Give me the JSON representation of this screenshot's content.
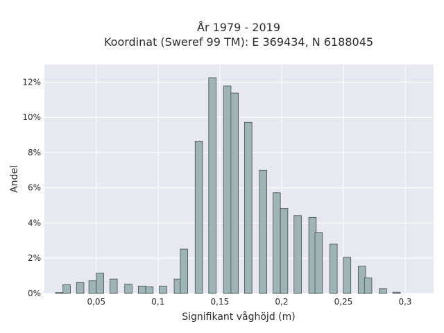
{
  "chart_data": {
    "type": "bar",
    "title_line1": "År 1979 - 2019",
    "title_line2": "Koordinat (Sweref 99 TM): E 369434, N 6188045",
    "xlabel": "Signifikant våghöjd (m)",
    "ylabel": "Andel",
    "xlim": [
      0.008,
      0.323
    ],
    "ylim": [
      0,
      0.13
    ],
    "bar_width": 0.006,
    "x_ticks": [
      0.05,
      0.1,
      0.15,
      0.2,
      0.25,
      0.3
    ],
    "x_tick_labels": [
      "0,05",
      "0,1",
      "0,15",
      "0,2",
      "0,25",
      "0,3"
    ],
    "y_ticks": [
      0,
      0.02,
      0.04,
      0.06,
      0.08,
      0.1,
      0.12
    ],
    "y_tick_labels": [
      "0%",
      "2%",
      "4%",
      "6%",
      "8%",
      "10%",
      "12%"
    ],
    "grid": true,
    "colors": {
      "plot_bg": "#e8e8f0",
      "grid": "#ffffff",
      "bar_fill": "#9fb5b5",
      "bar_stroke": "#3e4a4a"
    },
    "bars": [
      {
        "x": 0.02,
        "y": 0.0005
      },
      {
        "x": 0.026,
        "y": 0.005
      },
      {
        "x": 0.037,
        "y": 0.0062
      },
      {
        "x": 0.047,
        "y": 0.0072
      },
      {
        "x": 0.053,
        "y": 0.0115
      },
      {
        "x": 0.064,
        "y": 0.0082
      },
      {
        "x": 0.076,
        "y": 0.0053
      },
      {
        "x": 0.087,
        "y": 0.0042
      },
      {
        "x": 0.093,
        "y": 0.0038
      },
      {
        "x": 0.104,
        "y": 0.0042
      },
      {
        "x": 0.116,
        "y": 0.0082
      },
      {
        "x": 0.121,
        "y": 0.0252
      },
      {
        "x": 0.133,
        "y": 0.0865
      },
      {
        "x": 0.144,
        "y": 0.1225
      },
      {
        "x": 0.156,
        "y": 0.1178
      },
      {
        "x": 0.162,
        "y": 0.1138
      },
      {
        "x": 0.173,
        "y": 0.0972
      },
      {
        "x": 0.185,
        "y": 0.07
      },
      {
        "x": 0.196,
        "y": 0.0572
      },
      {
        "x": 0.202,
        "y": 0.0482
      },
      {
        "x": 0.213,
        "y": 0.0442
      },
      {
        "x": 0.225,
        "y": 0.0432
      },
      {
        "x": 0.23,
        "y": 0.0345
      },
      {
        "x": 0.242,
        "y": 0.028
      },
      {
        "x": 0.253,
        "y": 0.0205
      },
      {
        "x": 0.265,
        "y": 0.0155
      },
      {
        "x": 0.27,
        "y": 0.0088
      },
      {
        "x": 0.282,
        "y": 0.0028
      },
      {
        "x": 0.293,
        "y": 0.0007
      }
    ]
  }
}
